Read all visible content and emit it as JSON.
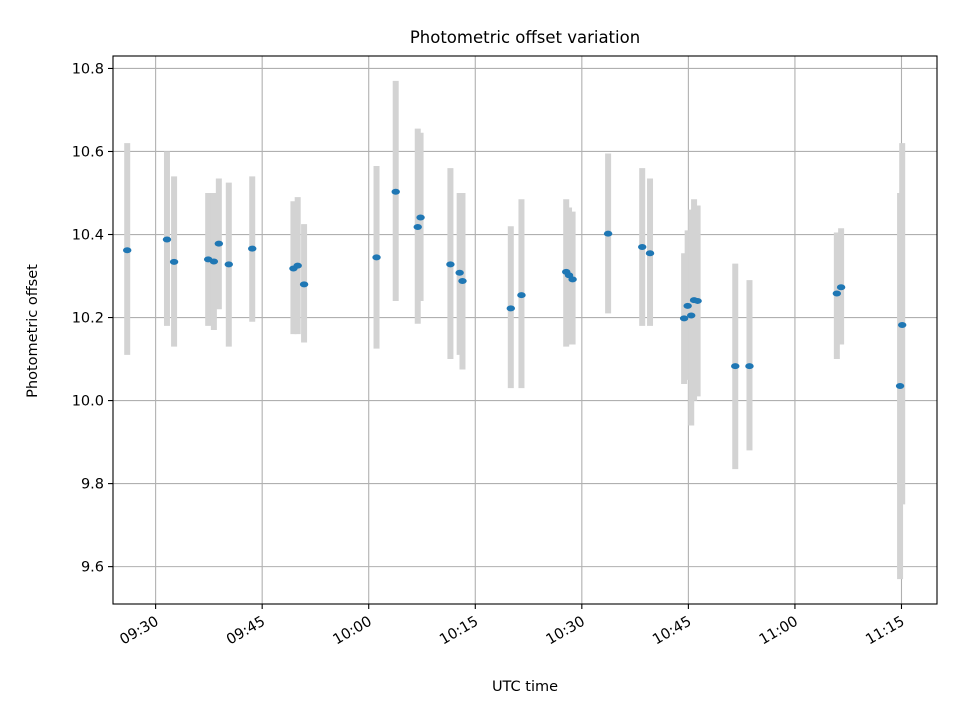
{
  "chart_data": {
    "type": "scatter",
    "title": "Photometric offset variation",
    "xlabel": "UTC time",
    "ylabel": "Photometric offset",
    "xlim": [
      "09:24",
      "11:20"
    ],
    "ylim": [
      9.51,
      10.83
    ],
    "grid": true,
    "x_ticks": [
      "09:30",
      "09:45",
      "10:00",
      "10:15",
      "10:30",
      "10:45",
      "11:00",
      "11:15"
    ],
    "y_ticks": [
      "9.6",
      "9.8",
      "10.0",
      "10.2",
      "10.4",
      "10.6",
      "10.8"
    ],
    "colors": {
      "point": "#1f77b4",
      "errorbar": "#d3d3d3",
      "grid": "#b0b0b0"
    },
    "points": [
      {
        "x": "09:26:00",
        "y": 10.362,
        "ylow": 10.11,
        "yhigh": 10.62
      },
      {
        "x": "09:31:36",
        "y": 10.388,
        "ylow": 10.18,
        "yhigh": 10.6
      },
      {
        "x": "09:32:36",
        "y": 10.334,
        "ylow": 10.13,
        "yhigh": 10.54
      },
      {
        "x": "09:37:24",
        "y": 10.34,
        "ylow": 10.18,
        "yhigh": 10.5
      },
      {
        "x": "09:38:12",
        "y": 10.335,
        "ylow": 10.17,
        "yhigh": 10.5
      },
      {
        "x": "09:38:54",
        "y": 10.378,
        "ylow": 10.22,
        "yhigh": 10.535
      },
      {
        "x": "09:40:18",
        "y": 10.328,
        "ylow": 10.13,
        "yhigh": 10.525
      },
      {
        "x": "09:43:36",
        "y": 10.366,
        "ylow": 10.19,
        "yhigh": 10.54
      },
      {
        "x": "09:49:24",
        "y": 10.318,
        "ylow": 10.16,
        "yhigh": 10.48
      },
      {
        "x": "09:50:00",
        "y": 10.325,
        "ylow": 10.16,
        "yhigh": 10.49
      },
      {
        "x": "09:50:54",
        "y": 10.28,
        "ylow": 10.14,
        "yhigh": 10.425
      },
      {
        "x": "10:01:06",
        "y": 10.345,
        "ylow": 10.125,
        "yhigh": 10.565
      },
      {
        "x": "10:03:48",
        "y": 10.503,
        "ylow": 10.24,
        "yhigh": 10.77
      },
      {
        "x": "10:06:54",
        "y": 10.418,
        "ylow": 10.185,
        "yhigh": 10.655
      },
      {
        "x": "10:07:18",
        "y": 10.441,
        "ylow": 10.24,
        "yhigh": 10.645
      },
      {
        "x": "10:11:30",
        "y": 10.328,
        "ylow": 10.1,
        "yhigh": 10.56
      },
      {
        "x": "10:12:48",
        "y": 10.308,
        "ylow": 10.11,
        "yhigh": 10.5
      },
      {
        "x": "10:13:12",
        "y": 10.288,
        "ylow": 10.075,
        "yhigh": 10.5
      },
      {
        "x": "10:20:00",
        "y": 10.222,
        "ylow": 10.03,
        "yhigh": 10.42
      },
      {
        "x": "10:21:30",
        "y": 10.254,
        "ylow": 10.03,
        "yhigh": 10.485
      },
      {
        "x": "10:27:48",
        "y": 10.31,
        "ylow": 10.13,
        "yhigh": 10.485
      },
      {
        "x": "10:28:12",
        "y": 10.302,
        "ylow": 10.135,
        "yhigh": 10.465
      },
      {
        "x": "10:28:42",
        "y": 10.292,
        "ylow": 10.135,
        "yhigh": 10.455
      },
      {
        "x": "10:33:42",
        "y": 10.402,
        "ylow": 10.21,
        "yhigh": 10.595
      },
      {
        "x": "10:38:30",
        "y": 10.37,
        "ylow": 10.18,
        "yhigh": 10.56
      },
      {
        "x": "10:39:36",
        "y": 10.355,
        "ylow": 10.18,
        "yhigh": 10.535
      },
      {
        "x": "10:44:24",
        "y": 10.198,
        "ylow": 10.04,
        "yhigh": 10.355
      },
      {
        "x": "10:44:54",
        "y": 10.228,
        "ylow": 10.05,
        "yhigh": 10.41
      },
      {
        "x": "10:45:24",
        "y": 10.205,
        "ylow": 9.94,
        "yhigh": 10.46
      },
      {
        "x": "10:45:48",
        "y": 10.242,
        "ylow": 10.0,
        "yhigh": 10.485
      },
      {
        "x": "10:46:18",
        "y": 10.24,
        "ylow": 10.01,
        "yhigh": 10.47
      },
      {
        "x": "10:51:36",
        "y": 10.083,
        "ylow": 9.835,
        "yhigh": 10.33
      },
      {
        "x": "10:53:36",
        "y": 10.083,
        "ylow": 9.88,
        "yhigh": 10.29
      },
      {
        "x": "11:05:54",
        "y": 10.258,
        "ylow": 10.1,
        "yhigh": 10.405
      },
      {
        "x": "11:06:30",
        "y": 10.273,
        "ylow": 10.135,
        "yhigh": 10.415
      },
      {
        "x": "11:14:48",
        "y": 10.035,
        "ylow": 9.57,
        "yhigh": 10.5
      },
      {
        "x": "11:15:06",
        "y": 10.182,
        "ylow": 9.75,
        "yhigh": 10.62
      }
    ]
  }
}
